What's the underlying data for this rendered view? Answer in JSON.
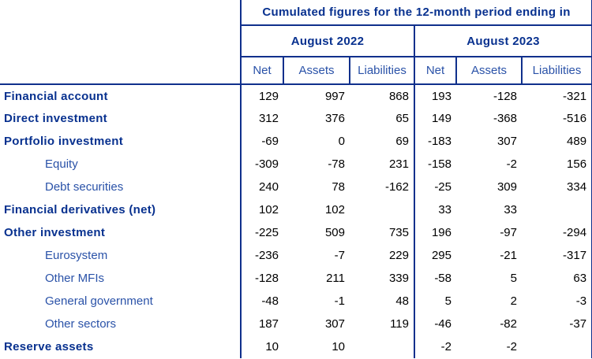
{
  "colors": {
    "border_navy": "#10308c",
    "heading_blue": "#08318f",
    "secondary_blue": "#2a52a8",
    "figure_text": "#000000",
    "background": "#ffffff"
  },
  "chart_data": {
    "type": "table",
    "title": "Cumulated figures for the 12-month period ending in",
    "column_groups": [
      {
        "label": "August 2022",
        "columns": [
          "Net",
          "Assets",
          "Liabilities"
        ]
      },
      {
        "label": "August 2023",
        "columns": [
          "Net",
          "Assets",
          "Liabilities"
        ]
      }
    ],
    "rows": [
      {
        "label": "Financial account",
        "bold": true,
        "indent": false,
        "values": [
          129,
          997,
          868,
          193,
          -128,
          -321
        ]
      },
      {
        "label": "Direct investment",
        "bold": true,
        "indent": false,
        "values": [
          312,
          376,
          65,
          149,
          -368,
          -516
        ]
      },
      {
        "label": "Portfolio investment",
        "bold": true,
        "indent": false,
        "values": [
          -69,
          0,
          69,
          -183,
          307,
          489
        ]
      },
      {
        "label": "Equity",
        "bold": false,
        "indent": true,
        "values": [
          -309,
          -78,
          231,
          -158,
          -2,
          156
        ]
      },
      {
        "label": "Debt securities",
        "bold": false,
        "indent": true,
        "values": [
          240,
          78,
          -162,
          -25,
          309,
          334
        ]
      },
      {
        "label": "Financial derivatives (net)",
        "bold": true,
        "indent": false,
        "values": [
          102,
          102,
          null,
          33,
          33,
          null
        ]
      },
      {
        "label": "Other investment",
        "bold": true,
        "indent": false,
        "values": [
          -225,
          509,
          735,
          196,
          -97,
          -294
        ]
      },
      {
        "label": "Eurosystem",
        "bold": false,
        "indent": true,
        "values": [
          -236,
          -7,
          229,
          295,
          -21,
          -317
        ]
      },
      {
        "label": "Other MFIs",
        "bold": false,
        "indent": true,
        "values": [
          -128,
          211,
          339,
          -58,
          5,
          63
        ]
      },
      {
        "label": "General government",
        "bold": false,
        "indent": true,
        "values": [
          -48,
          -1,
          48,
          5,
          2,
          -3
        ]
      },
      {
        "label": "Other sectors",
        "bold": false,
        "indent": true,
        "values": [
          187,
          307,
          119,
          -46,
          -82,
          -37
        ]
      },
      {
        "label": "Reserve assets",
        "bold": true,
        "indent": false,
        "values": [
          10,
          10,
          null,
          -2,
          -2,
          null
        ]
      }
    ]
  }
}
